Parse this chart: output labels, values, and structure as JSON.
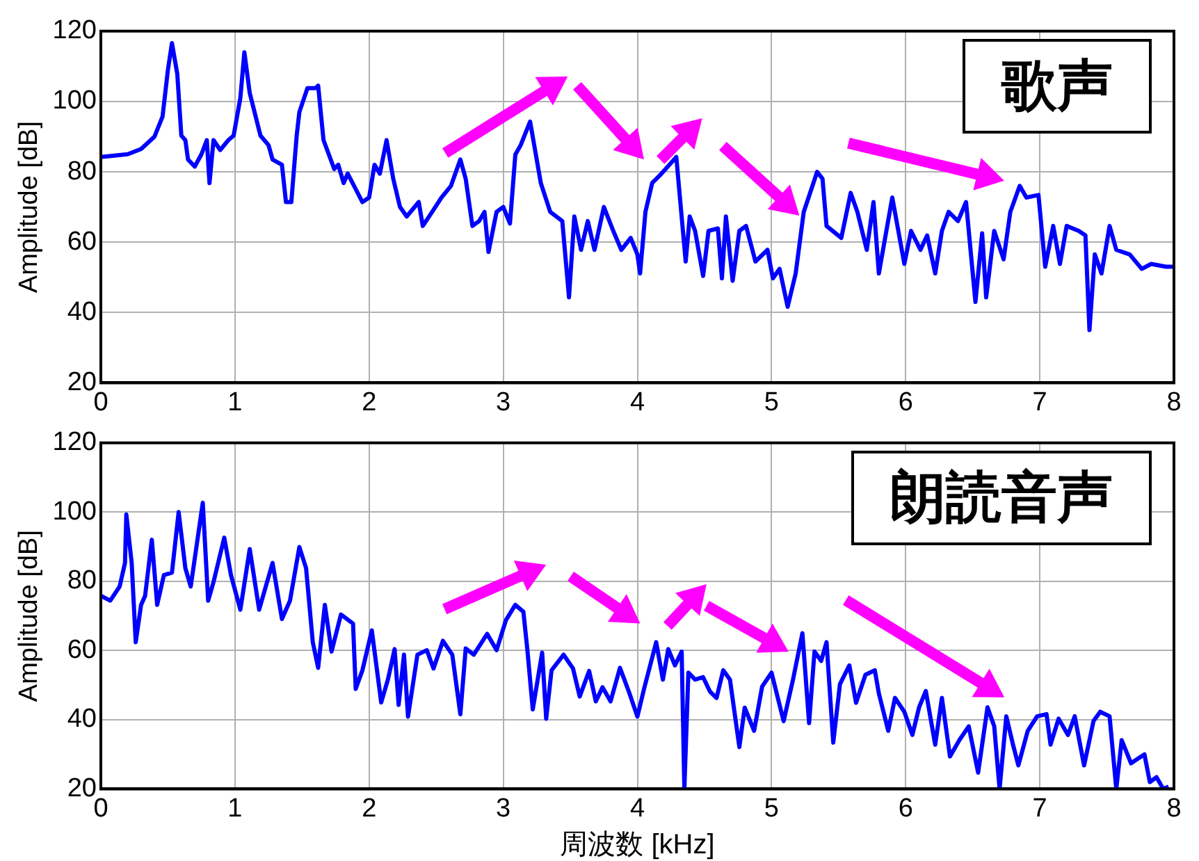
{
  "chart_data": [
    {
      "type": "line",
      "ylabel": "Amplitude [dB]",
      "annotations": [
        "歌声"
      ],
      "xlim": [
        0,
        8
      ],
      "xticks": [
        0,
        1,
        2,
        3,
        4,
        5,
        6,
        7,
        8
      ],
      "ylim": [
        20,
        120
      ],
      "yticks": [
        20,
        40,
        60,
        80,
        100,
        120
      ],
      "grid": true,
      "series": [
        {
          "color": "#0000ff",
          "x": [
            0,
            0.1,
            0.2,
            0.3,
            0.4,
            0.46,
            0.5,
            0.53,
            0.57,
            0.6,
            0.63,
            0.65,
            0.7,
            0.75,
            0.79,
            0.81,
            0.84,
            0.89,
            0.95,
            0.99,
            1.04,
            1.07,
            1.11,
            1.19,
            1.25,
            1.28,
            1.35,
            1.38,
            1.42,
            1.46,
            1.48,
            1.54,
            1.6,
            1.62,
            1.66,
            1.74,
            1.77,
            1.81,
            1.84,
            1.95,
            2.0,
            2.04,
            2.08,
            2.13,
            2.18,
            2.23,
            2.28,
            2.37,
            2.4,
            2.47,
            2.54,
            2.61,
            2.68,
            2.72,
            2.77,
            2.82,
            2.86,
            2.89,
            2.95,
            3.0,
            3.05,
            3.09,
            3.13,
            3.2,
            3.28,
            3.35,
            3.44,
            3.49,
            3.53,
            3.58,
            3.63,
            3.68,
            3.75,
            3.82,
            3.88,
            3.95,
            4.0,
            4.02,
            4.06,
            4.11,
            4.18,
            4.29,
            4.32,
            4.36,
            4.39,
            4.43,
            4.49,
            4.53,
            4.6,
            4.63,
            4.66,
            4.71,
            4.76,
            4.81,
            4.88,
            4.97,
            5.01,
            5.06,
            5.12,
            5.18,
            5.24,
            5.34,
            5.38,
            5.41,
            5.52,
            5.59,
            5.64,
            5.71,
            5.76,
            5.8,
            5.9,
            5.99,
            6.04,
            6.11,
            6.16,
            6.22,
            6.27,
            6.32,
            6.39,
            6.45,
            6.52,
            6.57,
            6.6,
            6.66,
            6.73,
            6.78,
            6.85,
            6.9,
            6.99,
            7.04,
            7.1,
            7.15,
            7.2,
            7.29,
            7.34,
            7.37,
            7.41,
            7.46,
            7.52,
            7.57,
            7.67,
            7.76,
            7.83,
            7.94,
            8
          ],
          "values": [
            84.2,
            84.6,
            85,
            86.5,
            90,
            95.7,
            109,
            116.6,
            107.8,
            90.3,
            89,
            83.5,
            81.5,
            85,
            89,
            76.8,
            89,
            86.2,
            89,
            90.3,
            101,
            114,
            102.4,
            90.3,
            87.6,
            83.5,
            82,
            71.4,
            71.4,
            90.3,
            97,
            103.8,
            103.8,
            104.5,
            89,
            80.8,
            82,
            76.8,
            79.5,
            71.4,
            72.7,
            82,
            79.5,
            89,
            78,
            70,
            67.3,
            71.4,
            64.6,
            68.6,
            72.7,
            76,
            83.5,
            78,
            64.6,
            66,
            68.6,
            57.2,
            68.6,
            70,
            65.3,
            84.9,
            87.6,
            94.3,
            76.8,
            68.6,
            66,
            44.3,
            67.3,
            57.8,
            66,
            57.8,
            70,
            63.2,
            57.8,
            61.2,
            56.5,
            51.1,
            68.6,
            76.8,
            79.5,
            84.2,
            71.4,
            54.5,
            67.3,
            63.2,
            50.4,
            63.2,
            63.9,
            49.7,
            67.3,
            49,
            63.2,
            64.6,
            54.5,
            57.8,
            49.7,
            52.4,
            41.6,
            51.1,
            68.6,
            80,
            78,
            64.6,
            61.2,
            74,
            68.6,
            57.8,
            71.4,
            51.1,
            72.7,
            53.8,
            63.2,
            57.8,
            61.9,
            51.1,
            63.2,
            68.6,
            66,
            71.4,
            43,
            62.5,
            44.3,
            63.2,
            55.1,
            68.6,
            76,
            72.7,
            73.4,
            53,
            64.6,
            53.8,
            64.6,
            63.2,
            61.9,
            35,
            56.5,
            51.1,
            64.6,
            57.8,
            56.5,
            52.4,
            53.8,
            53,
            53
          ]
        }
      ]
    },
    {
      "type": "line",
      "xlabel": "周波数 [kHz]",
      "ylabel": "Amplitude [dB]",
      "annotations": [
        "朗読音声"
      ],
      "xlim": [
        0,
        8
      ],
      "xticks": [
        0,
        1,
        2,
        3,
        4,
        5,
        6,
        7,
        8
      ],
      "ylim": [
        20,
        120
      ],
      "yticks": [
        20,
        40,
        60,
        80,
        100,
        120
      ],
      "grid": true,
      "series": [
        {
          "color": "#0000ff",
          "x": [
            0,
            0.07,
            0.14,
            0.18,
            0.19,
            0.23,
            0.26,
            0.3,
            0.33,
            0.38,
            0.42,
            0.47,
            0.53,
            0.58,
            0.63,
            0.67,
            0.76,
            0.8,
            0.84,
            0.92,
            0.97,
            1.04,
            1.11,
            1.18,
            1.28,
            1.35,
            1.41,
            1.48,
            1.53,
            1.58,
            1.62,
            1.67,
            1.72,
            1.79,
            1.88,
            1.9,
            1.95,
            2.02,
            2.09,
            2.14,
            2.19,
            2.22,
            2.26,
            2.29,
            2.36,
            2.43,
            2.48,
            2.55,
            2.62,
            2.68,
            2.72,
            2.78,
            2.88,
            2.95,
            3.02,
            3.09,
            3.15,
            3.18,
            3.22,
            3.29,
            3.32,
            3.36,
            3.45,
            3.52,
            3.57,
            3.64,
            3.69,
            3.74,
            3.8,
            3.87,
            3.94,
            4.0,
            4.05,
            4.14,
            4.19,
            4.23,
            4.28,
            4.33,
            4.35,
            4.38,
            4.43,
            4.49,
            4.54,
            4.59,
            4.64,
            4.69,
            4.76,
            4.8,
            4.87,
            4.93,
            5.0,
            5.09,
            5.16,
            5.23,
            5.28,
            5.32,
            5.37,
            5.41,
            5.46,
            5.51,
            5.58,
            5.63,
            5.7,
            5.77,
            5.8,
            5.87,
            5.92,
            5.99,
            6.05,
            6.1,
            6.15,
            6.22,
            6.27,
            6.33,
            6.4,
            6.47,
            6.54,
            6.61,
            6.66,
            6.7,
            6.75,
            6.8,
            6.84,
            6.91,
            6.98,
            7.05,
            7.08,
            7.14,
            7.21,
            7.26,
            7.33,
            7.4,
            7.45,
            7.52,
            7.57,
            7.61,
            7.68,
            7.73,
            7.78,
            7.82,
            7.87,
            7.92,
            7.96
          ],
          "values": [
            75.8,
            74.4,
            78.5,
            85.3,
            99.3,
            85.3,
            62.4,
            73.2,
            75.8,
            92,
            73.2,
            81.8,
            82.5,
            100,
            83.8,
            78.5,
            102.7,
            74.4,
            79.8,
            92.6,
            81.8,
            71.8,
            89.3,
            71.8,
            85.3,
            69.1,
            74.4,
            89.9,
            83.8,
            62.4,
            55,
            73.2,
            59.7,
            70.4,
            67.8,
            48.9,
            54.3,
            65.8,
            45,
            51.6,
            60.4,
            44.3,
            58.8,
            40.9,
            58.8,
            60.1,
            54.8,
            62.8,
            58.8,
            41.6,
            60.6,
            58.8,
            64.8,
            60.1,
            68.8,
            73.2,
            71.2,
            60.1,
            43,
            59.4,
            40.3,
            54.3,
            58.8,
            54.8,
            46.7,
            54.1,
            45.3,
            49.4,
            45.3,
            55,
            47.7,
            40.9,
            49,
            62.4,
            51.6,
            60.4,
            55.7,
            59.7,
            20,
            53.6,
            51.6,
            52.3,
            48.2,
            46.3,
            54.3,
            51.6,
            32.1,
            43.5,
            36.8,
            49.6,
            53.6,
            39.6,
            51.6,
            65,
            39,
            59.7,
            57,
            62.4,
            33.4,
            50.3,
            55.7,
            44.9,
            53,
            54.3,
            47.6,
            36.8,
            46.3,
            42.3,
            35.6,
            43.6,
            48.3,
            32.8,
            46.3,
            29.4,
            34.1,
            38.1,
            24.7,
            43.6,
            38.1,
            20,
            41,
            32.8,
            26.8,
            36.8,
            41,
            41.6,
            32.8,
            40.3,
            35.6,
            41,
            26.8,
            39.6,
            42.3,
            41,
            20,
            34.1,
            27.4,
            28.7,
            30,
            22,
            23.4,
            20,
            20.7
          ]
        }
      ]
    }
  ]
}
